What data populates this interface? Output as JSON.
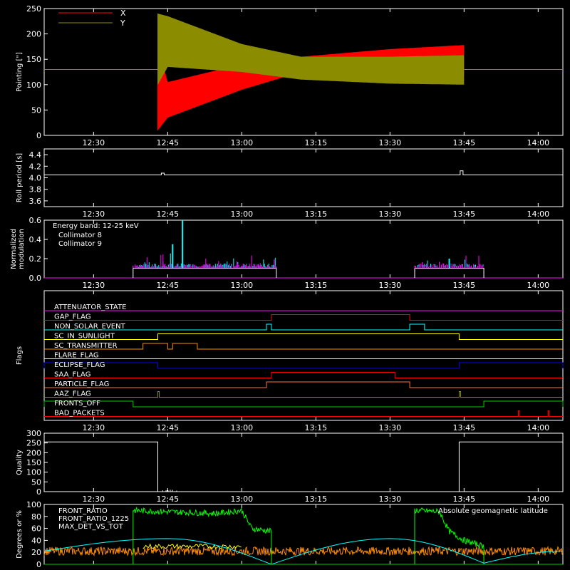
{
  "time_axis": {
    "tick_labels": [
      "12:30",
      "12:45",
      "13:00",
      "13:15",
      "13:30",
      "13:45",
      "14:00"
    ],
    "xlim_minutes": [
      "12:20",
      "14:05"
    ]
  },
  "chart_data": [
    {
      "type": "line",
      "ylabel": "Pointing [\"]",
      "ylim": [
        0,
        250
      ],
      "yticks": [
        0,
        50,
        100,
        150,
        200,
        250
      ],
      "legend": {
        "placement": "top-left",
        "entries": [
          "X",
          "Y"
        ]
      },
      "series": [
        {
          "name": "X",
          "color": "#ff0000",
          "envelope_time": [
            "12:43",
            "12:45",
            "13:00",
            "13:12",
            "13:30",
            "13:45"
          ],
          "envelope_low": [
            10,
            35,
            90,
            125,
            118,
            118
          ],
          "envelope_high": [
            175,
            105,
            140,
            155,
            170,
            178
          ]
        },
        {
          "name": "Y",
          "color": "#8c8c00",
          "envelope_time": [
            "12:43",
            "12:45",
            "13:00",
            "13:12",
            "13:30",
            "13:45"
          ],
          "envelope_low": [
            100,
            135,
            125,
            110,
            102,
            100
          ],
          "envelope_high": [
            240,
            235,
            180,
            155,
            155,
            158
          ]
        }
      ],
      "baseline": 130
    },
    {
      "type": "line",
      "ylabel": "Roll period [s]",
      "ylim": [
        3.5,
        4.5
      ],
      "yticks": [
        "3.6",
        "3.8",
        "4.0",
        "4.2",
        "4.4"
      ],
      "baseline": 4.05,
      "spikes": [
        {
          "time": "12:44",
          "value": 4.08
        },
        {
          "time": "13:44.5",
          "value": 4.12
        }
      ]
    },
    {
      "type": "line",
      "ylabel": "Normalized modulation",
      "ylim": [
        0,
        0.6
      ],
      "yticks": [
        "0.0",
        "0.2",
        "0.4",
        "0.6"
      ],
      "annotation": "Energy band: 12-25 keV",
      "series": [
        {
          "name": "Collimator 8",
          "color": "#00ffff"
        },
        {
          "name": "Collimator 9",
          "color": "#ff00ff"
        }
      ],
      "active_intervals": [
        [
          "12:38",
          "13:07"
        ],
        [
          "13:35",
          "13:49"
        ]
      ],
      "base_level": 0.1,
      "peaks": [
        {
          "time": "12:48",
          "value": 0.6
        },
        {
          "time": "12:46",
          "value": 0.35
        },
        {
          "time": "13:42",
          "value": 0.2
        }
      ]
    },
    {
      "type": "line",
      "ylabel": "Flags",
      "flags": [
        {
          "name": "ATTENUATOR_STATE",
          "color": "#ff00ff",
          "segments": []
        },
        {
          "name": "GAP_FLAG",
          "color": "#ff0000",
          "segments": [
            [
              "13:06",
              "13:34"
            ]
          ]
        },
        {
          "name": "NON_SOLAR_EVENT",
          "color": "#00ffff",
          "segments": [
            [
              "13:05",
              "13:06"
            ],
            [
              "13:34",
              "13:37"
            ]
          ]
        },
        {
          "name": "SC_IN_SUNLIGHT",
          "color": "#ffff00",
          "segments": [
            [
              "12:43",
              "13:44"
            ]
          ]
        },
        {
          "name": "SC_TRANSMITTER",
          "color": "#ff8c00",
          "segments": [
            [
              "12:40",
              "12:45"
            ],
            [
              "12:46",
              "12:51"
            ]
          ]
        },
        {
          "name": "FLARE_FLAG",
          "color": "#ffff00",
          "segments": []
        },
        {
          "name": "ECLIPSE_FLAG",
          "color": "#0000ff",
          "segments": [
            [
              "12:20",
              "12:43"
            ],
            [
              "13:44",
              "14:05"
            ]
          ]
        },
        {
          "name": "SAA_FLAG",
          "color": "#ff0000",
          "segments": [
            [
              "13:06",
              "13:31"
            ]
          ]
        },
        {
          "name": "PARTICLE_FLAG",
          "color": "#ff7040",
          "segments": [
            [
              "13:05",
              "13:34"
            ]
          ]
        },
        {
          "name": "AAZ_FLAG",
          "color": "#8c8c00",
          "segments": [
            [
              "12:43",
              "12:43.3"
            ],
            [
              "13:44",
              "13:44.3"
            ]
          ]
        },
        {
          "name": "FRONTS_OFF",
          "color": "#00cc00",
          "segments": [
            [
              "12:20",
              "12:38"
            ],
            [
              "13:49",
              "14:05"
            ]
          ]
        },
        {
          "name": "BAD_PACKETS",
          "color": "#ff0000",
          "segments": [
            [
              "13:56",
              "13:56.2"
            ],
            [
              "14:02",
              "14:02.2"
            ]
          ]
        }
      ]
    },
    {
      "type": "line",
      "ylabel": "Quality",
      "ylim": [
        0,
        300
      ],
      "yticks": [
        0,
        50,
        100,
        150,
        200,
        250,
        300
      ],
      "series": [
        {
          "name": "",
          "color": "#ffffff",
          "x": [
            "12:20",
            "12:43",
            "12:43",
            "13:44",
            "13:44",
            "14:05"
          ],
          "y": [
            255,
            255,
            0,
            0,
            255,
            255
          ]
        }
      ]
    },
    {
      "type": "line",
      "ylabel": "Degrees or %",
      "ylim": [
        0,
        100
      ],
      "yticks": [
        0,
        20,
        40,
        60,
        80,
        100
      ],
      "series": [
        {
          "name": "FRONT_RATIO",
          "color": "#ffff00",
          "level": 30
        },
        {
          "name": "FRONT_RATIO_1225",
          "color": "#00ff00",
          "segments": [
            {
              "x": [
                "12:38",
                "12:44",
                "12:55",
                "13:00",
                "13:02",
                "13:06"
              ],
              "y": [
                90,
                88,
                85,
                90,
                60,
                55
              ]
            },
            {
              "x": [
                "13:35",
                "13:40",
                "13:42",
                "13:45",
                "13:49"
              ],
              "y": [
                90,
                88,
                55,
                40,
                30
              ]
            }
          ]
        },
        {
          "name": "MAX_DET_VS_TOT",
          "color": "#ff8c00",
          "level": 22
        },
        {
          "name": "Absolute geomagnetic latitude",
          "color": "#00ffff",
          "x": [
            "12:20",
            "12:45",
            "13:06",
            "13:30",
            "13:49",
            "14:05"
          ],
          "y": [
            22,
            43,
            0,
            43,
            2,
            22
          ]
        }
      ]
    }
  ]
}
